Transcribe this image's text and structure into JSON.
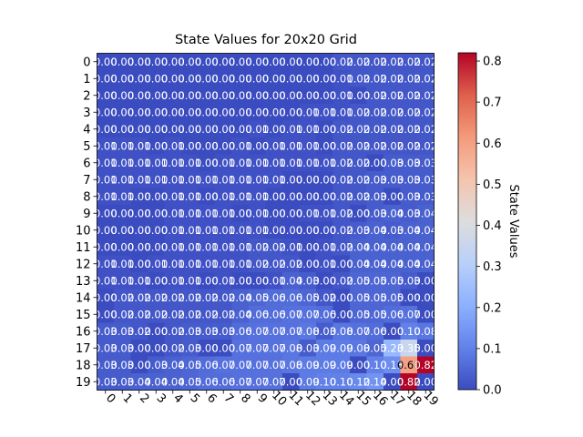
{
  "chart_data": {
    "type": "heatmap",
    "title": "State Values for 20x20 Grid",
    "colorbar_label": "State Values",
    "colormap": "coolwarm",
    "vmin": 0.0,
    "vmax": 0.82,
    "colorbar_ticks": [
      "0.0",
      "0.1",
      "0.2",
      "0.3",
      "0.4",
      "0.5",
      "0.6",
      "0.7",
      "0.8"
    ],
    "x_ticks": [
      "0",
      "1",
      "2",
      "3",
      "4",
      "5",
      "6",
      "7",
      "8",
      "9",
      "10",
      "11",
      "12",
      "13",
      "14",
      "15",
      "16",
      "17",
      "18",
      "19"
    ],
    "y_ticks": [
      "0",
      "1",
      "2",
      "3",
      "4",
      "5",
      "6",
      "7",
      "8",
      "9",
      "10",
      "11",
      "12",
      "13",
      "14",
      "15",
      "16",
      "17",
      "18",
      "19"
    ],
    "values": [
      [
        0.0,
        0.0,
        0.0,
        0.0,
        0.0,
        0.0,
        0.0,
        0.0,
        0.0,
        0.0,
        0.0,
        0.0,
        0.0,
        0.0,
        0.02,
        0.02,
        0.02,
        0.02,
        0.02,
        0.02
      ],
      [
        0.0,
        0.0,
        0.0,
        0.0,
        0.0,
        0.0,
        0.0,
        0.0,
        0.0,
        0.0,
        0.0,
        0.0,
        0.0,
        0.0,
        0.01,
        0.02,
        0.02,
        0.02,
        0.02,
        0.02
      ],
      [
        0.0,
        0.0,
        0.0,
        0.0,
        0.0,
        0.0,
        0.0,
        0.0,
        0.0,
        0.0,
        0.0,
        0.0,
        0.0,
        0.0,
        0.01,
        0.0,
        0.02,
        0.02,
        0.02,
        0.02
      ],
      [
        0.0,
        0.0,
        0.0,
        0.0,
        0.0,
        0.0,
        0.0,
        0.0,
        0.0,
        0.0,
        0.0,
        0.0,
        0.01,
        0.01,
        0.01,
        0.02,
        0.02,
        0.02,
        0.02,
        0.02
      ],
      [
        0.0,
        0.0,
        0.0,
        0.0,
        0.0,
        0.0,
        0.0,
        0.0,
        0.0,
        0.01,
        0.0,
        0.01,
        0.01,
        0.0,
        0.02,
        0.02,
        0.02,
        0.02,
        0.02,
        0.02
      ],
      [
        0.01,
        0.01,
        0.01,
        0.0,
        0.01,
        0.0,
        0.0,
        0.0,
        0.01,
        0.0,
        0.01,
        0.01,
        0.01,
        0.0,
        0.02,
        0.02,
        0.02,
        0.02,
        0.02,
        0.02
      ],
      [
        0.01,
        0.01,
        0.01,
        0.01,
        0.01,
        0.01,
        0.0,
        0.01,
        0.01,
        0.01,
        0.01,
        0.01,
        0.01,
        0.01,
        0.02,
        0.02,
        0.0,
        0.03,
        0.03,
        0.03
      ],
      [
        0.01,
        0.01,
        0.01,
        0.01,
        0.01,
        0.01,
        0.01,
        0.01,
        0.01,
        0.01,
        0.01,
        0.0,
        0.0,
        0.0,
        0.02,
        0.02,
        0.03,
        0.03,
        0.03,
        0.03
      ],
      [
        0.01,
        0.01,
        0.0,
        0.0,
        0.01,
        0.01,
        0.0,
        0.01,
        0.01,
        0.01,
        0.0,
        0.0,
        0.0,
        0.0,
        0.02,
        0.02,
        0.03,
        0.0,
        0.03,
        0.03
      ],
      [
        0.0,
        0.0,
        0.0,
        0.0,
        0.01,
        0.01,
        0.01,
        0.01,
        0.0,
        0.01,
        0.0,
        0.0,
        0.01,
        0.01,
        0.02,
        0.0,
        0.03,
        0.04,
        0.03,
        0.04
      ],
      [
        0.0,
        0.0,
        0.0,
        0.0,
        0.01,
        0.01,
        0.01,
        0.01,
        0.01,
        0.01,
        0.0,
        0.0,
        0.0,
        0.0,
        0.02,
        0.03,
        0.04,
        0.03,
        0.04,
        0.04
      ],
      [
        0.0,
        0.0,
        0.0,
        0.0,
        0.01,
        0.01,
        0.01,
        0.01,
        0.01,
        0.02,
        0.02,
        0.01,
        0.0,
        0.01,
        0.02,
        0.04,
        0.04,
        0.04,
        0.04,
        0.04
      ],
      [
        0.01,
        0.01,
        0.0,
        0.01,
        0.01,
        0.01,
        0.01,
        0.01,
        0.01,
        0.02,
        0.02,
        0.02,
        0.0,
        0.01,
        0.0,
        0.04,
        0.04,
        0.04,
        0.04,
        0.04
      ],
      [
        0.01,
        0.01,
        0.01,
        0.0,
        0.01,
        0.01,
        0.0,
        0.01,
        0.0,
        0.0,
        0.01,
        0.04,
        0.03,
        0.0,
        0.02,
        0.05,
        0.05,
        0.05,
        0.03,
        0.0
      ],
      [
        0.0,
        0.02,
        0.02,
        0.02,
        0.02,
        0.02,
        0.02,
        0.02,
        0.04,
        0.05,
        0.06,
        0.06,
        0.05,
        0.02,
        0.0,
        0.05,
        0.05,
        0.05,
        0.0,
        0.0
      ],
      [
        0.0,
        0.02,
        0.02,
        0.02,
        0.02,
        0.02,
        0.02,
        0.02,
        0.04,
        0.06,
        0.06,
        0.07,
        0.07,
        0.06,
        0.0,
        0.05,
        0.05,
        0.06,
        0.07,
        0.0
      ],
      [
        0.03,
        0.03,
        0.02,
        0.0,
        0.02,
        0.03,
        0.03,
        0.03,
        0.06,
        0.07,
        0.07,
        0.07,
        0.08,
        0.03,
        0.08,
        0.07,
        0.06,
        0.0,
        0.1,
        0.08
      ],
      [
        0.03,
        0.03,
        0.0,
        0.0,
        0.02,
        0.03,
        0.0,
        0.0,
        0.07,
        0.07,
        0.07,
        0.08,
        0.03,
        0.09,
        0.09,
        0.08,
        0.05,
        0.23,
        0.35,
        0.0
      ],
      [
        0.03,
        0.03,
        0.0,
        0.03,
        0.04,
        0.05,
        0.06,
        0.07,
        0.07,
        0.07,
        0.07,
        0.08,
        0.09,
        0.09,
        0.09,
        0.0,
        0.1,
        0.13,
        0.6,
        0.82
      ],
      [
        0.03,
        0.03,
        0.04,
        0.04,
        0.04,
        0.05,
        0.06,
        0.06,
        0.07,
        0.07,
        0.07,
        0.0,
        0.09,
        0.1,
        0.1,
        0.12,
        0.14,
        0.0,
        0.82,
        0.0
      ]
    ]
  }
}
